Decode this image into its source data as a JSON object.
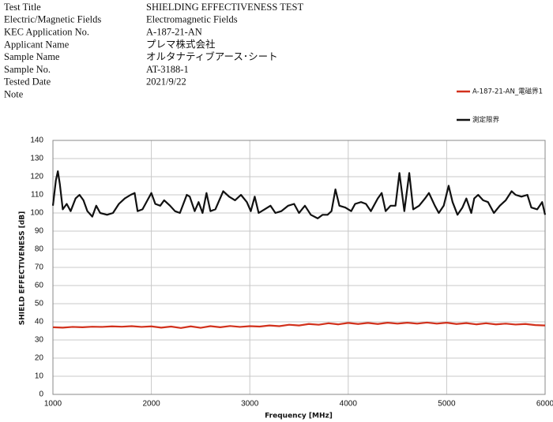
{
  "header": {
    "rows": [
      {
        "label": "Test Title",
        "value": "SHIELDING EFFECTIVENESS TEST"
      },
      {
        "label": "Electric/Magnetic Fields",
        "value": "Electromagnetic Fields"
      },
      {
        "label": "KEC Application No.",
        "value": "A-187-21-AN"
      },
      {
        "label": "Applicant Name",
        "value": "プレマ株式会社"
      },
      {
        "label": "Sample Name",
        "value": "オルタナティブアース･シート"
      },
      {
        "label": "Sample No.",
        "value": "AT-3188-1"
      },
      {
        "label": "Tested Date",
        "value": "2021/9/22"
      },
      {
        "label": "Note"
      }
    ]
  },
  "chart_data": {
    "type": "line",
    "x_label": "Frequency [MHz]",
    "y_label": "SHIELD EFFECTIVENESS [dB]",
    "xlim": [
      1000,
      6000
    ],
    "xticks": [
      1000,
      2000,
      3000,
      4000,
      5000,
      6000
    ],
    "ylim": [
      0,
      140
    ],
    "yticks": [
      0,
      10,
      20,
      30,
      40,
      50,
      60,
      70,
      80,
      90,
      100,
      110,
      120,
      130,
      140
    ],
    "grid": true,
    "series": [
      {
        "name": "A-187-21-AN_電磁界1",
        "color": "#d2311c",
        "x": [
          1000,
          1100,
          1200,
          1300,
          1400,
          1500,
          1600,
          1700,
          1800,
          1900,
          2000,
          2100,
          2200,
          2300,
          2400,
          2500,
          2600,
          2700,
          2800,
          2900,
          3000,
          3100,
          3200,
          3300,
          3400,
          3500,
          3600,
          3700,
          3800,
          3900,
          4000,
          4100,
          4200,
          4300,
          4400,
          4500,
          4600,
          4700,
          4800,
          4900,
          5000,
          5100,
          5200,
          5300,
          5400,
          5500,
          5600,
          5700,
          5800,
          5900,
          6000
        ],
        "values": [
          37,
          36.8,
          37.2,
          37,
          37.3,
          37.2,
          37.5,
          37.3,
          37.6,
          37.2,
          37.5,
          36.8,
          37.4,
          36.6,
          37.5,
          36.7,
          37.6,
          37,
          37.7,
          37.2,
          37.6,
          37.4,
          38,
          37.6,
          38.4,
          38,
          38.8,
          38.4,
          39.2,
          38.6,
          39.4,
          38.8,
          39.4,
          38.8,
          39.5,
          39,
          39.5,
          39,
          39.6,
          39,
          39.5,
          38.8,
          39.3,
          38.6,
          39.2,
          38.6,
          39,
          38.5,
          38.8,
          38.2,
          38
        ]
      },
      {
        "name": "測定限界",
        "color": "#111111",
        "x": [
          1000,
          1030,
          1050,
          1070,
          1100,
          1140,
          1180,
          1230,
          1270,
          1310,
          1350,
          1400,
          1440,
          1480,
          1550,
          1610,
          1670,
          1730,
          1790,
          1830,
          1860,
          1910,
          1960,
          2000,
          2040,
          2090,
          2130,
          2190,
          2240,
          2290,
          2360,
          2390,
          2440,
          2480,
          2520,
          2560,
          2600,
          2650,
          2730,
          2790,
          2850,
          2910,
          2970,
          3010,
          3050,
          3090,
          3150,
          3210,
          3260,
          3320,
          3390,
          3450,
          3500,
          3560,
          3620,
          3690,
          3740,
          3790,
          3830,
          3870,
          3910,
          3970,
          4030,
          4070,
          4130,
          4180,
          4230,
          4300,
          4340,
          4380,
          4430,
          4480,
          4520,
          4570,
          4620,
          4660,
          4720,
          4780,
          4820,
          4880,
          4920,
          4970,
          5020,
          5060,
          5110,
          5160,
          5200,
          5250,
          5280,
          5320,
          5370,
          5420,
          5480,
          5540,
          5600,
          5660,
          5700,
          5760,
          5820,
          5860,
          5920,
          5970,
          6000
        ],
        "values": [
          104,
          118,
          123,
          116,
          102,
          105,
          101,
          108,
          110,
          107,
          101,
          98,
          104,
          100,
          99,
          100,
          105,
          108,
          110,
          111,
          101,
          102,
          107,
          111,
          105,
          104,
          107,
          104,
          101,
          100,
          110,
          109,
          101,
          106,
          100,
          111,
          101,
          102,
          112,
          109,
          107,
          110,
          106,
          101,
          109,
          100,
          102,
          104,
          100,
          101,
          104,
          105,
          100,
          104,
          99,
          97,
          99,
          99,
          101,
          113,
          104,
          103,
          101,
          105,
          106,
          105,
          101,
          108,
          111,
          101,
          104,
          104,
          122,
          101,
          122,
          102,
          104,
          108,
          111,
          104,
          100,
          104,
          115,
          106,
          99,
          103,
          108,
          100,
          108,
          110,
          107,
          106,
          100,
          104,
          107,
          112,
          110,
          109,
          110,
          103,
          102,
          106,
          99
        ]
      }
    ]
  }
}
